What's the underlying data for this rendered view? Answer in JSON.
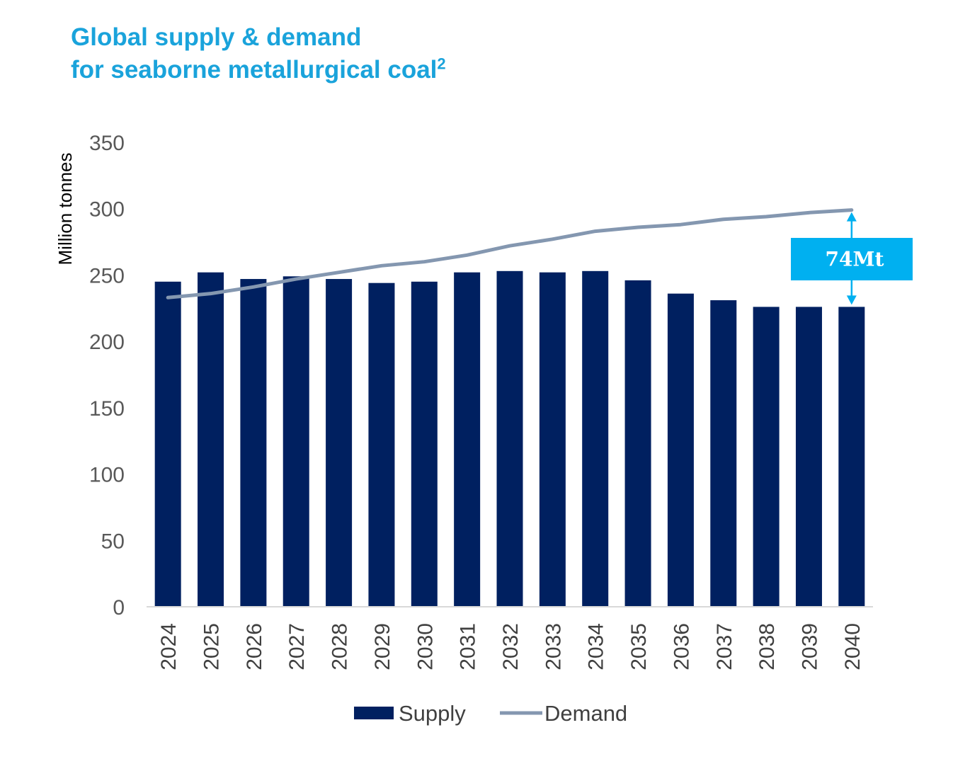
{
  "title_line1": "Global supply & demand",
  "title_line2": "for seaborne metallurgical coal",
  "title_sup": "2",
  "chart_data": {
    "type": "bar",
    "title": "Global supply & demand for seaborne metallurgical coal",
    "xlabel": "",
    "ylabel": "Million tonnes",
    "ylim": [
      0,
      350
    ],
    "yticks": [
      0,
      50,
      100,
      150,
      200,
      250,
      300,
      350
    ],
    "grid": false,
    "legend_position": "bottom",
    "categories": [
      "2024",
      "2025",
      "2026",
      "2027",
      "2028",
      "2029",
      "2030",
      "2031",
      "2032",
      "2033",
      "2034",
      "2035",
      "2036",
      "2037",
      "2038",
      "2039",
      "2040"
    ],
    "series": [
      {
        "name": "Supply",
        "kind": "bar",
        "color": "#002060",
        "values": [
          245,
          252,
          247,
          249,
          247,
          244,
          245,
          252,
          253,
          252,
          253,
          246,
          236,
          231,
          226,
          226,
          226
        ]
      },
      {
        "name": "Demand",
        "kind": "line",
        "color": "#8497b0",
        "values": [
          233,
          236,
          241,
          247,
          252,
          257,
          260,
          265,
          272,
          277,
          283,
          286,
          288,
          292,
          294,
          297,
          299
        ]
      }
    ],
    "annotation": {
      "label": "74Mt",
      "category": "2040",
      "color": "#00b0f0"
    }
  }
}
